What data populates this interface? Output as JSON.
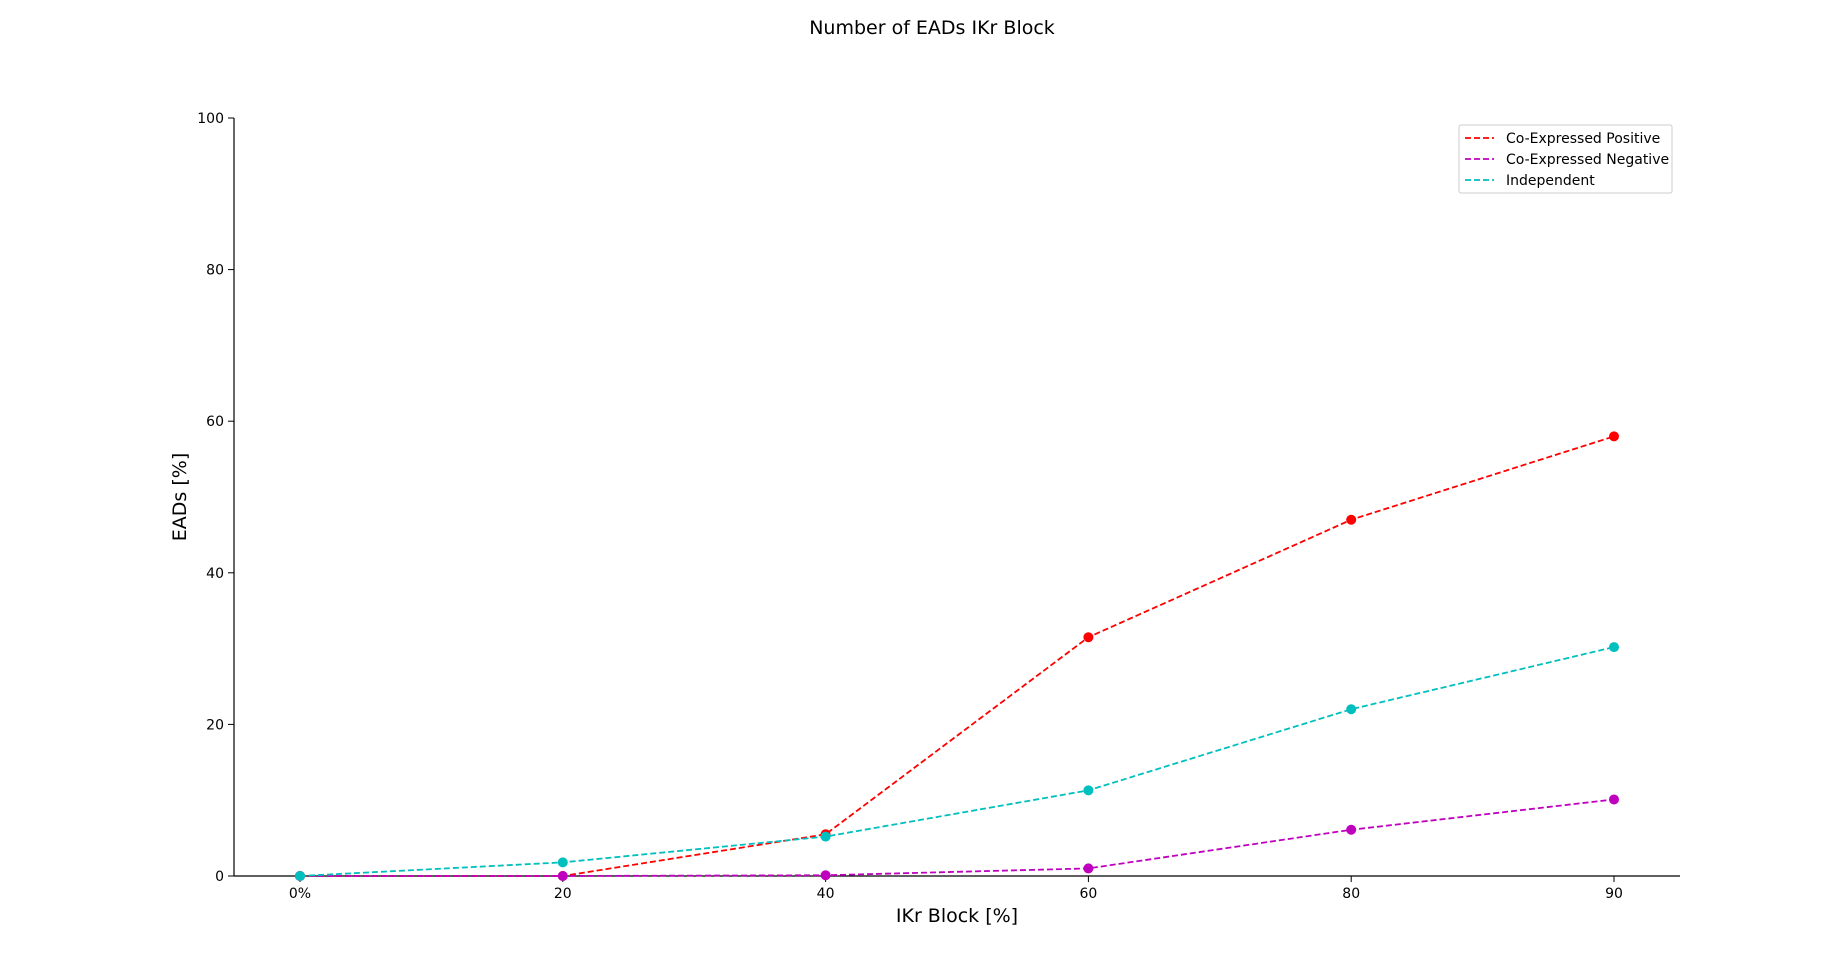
{
  "chart_data": {
    "type": "line",
    "title": "Number of EADs IKr Block",
    "xlabel": "IKr Block [%]",
    "ylabel": "EADs [%]",
    "categories": [
      "0%",
      "20",
      "40",
      "60",
      "80",
      "90"
    ],
    "ylim": [
      0,
      100
    ],
    "yticks": [
      "0",
      "20",
      "40",
      "60",
      "80",
      "100"
    ],
    "grid": false,
    "legend_position": "top-right",
    "series": [
      {
        "name": "Co-Expressed Positive",
        "color": "#ff0000",
        "values": [
          0,
          0,
          5.5,
          31.5,
          47,
          58
        ]
      },
      {
        "name": "Co-Expressed Negative",
        "color": "#bf00bf",
        "values": [
          0,
          0,
          0.1,
          1,
          6.1,
          10.1
        ]
      },
      {
        "name": "Independent",
        "color": "#00bfbf",
        "values": [
          0,
          1.8,
          5.2,
          11.3,
          22,
          30.2
        ]
      }
    ]
  }
}
